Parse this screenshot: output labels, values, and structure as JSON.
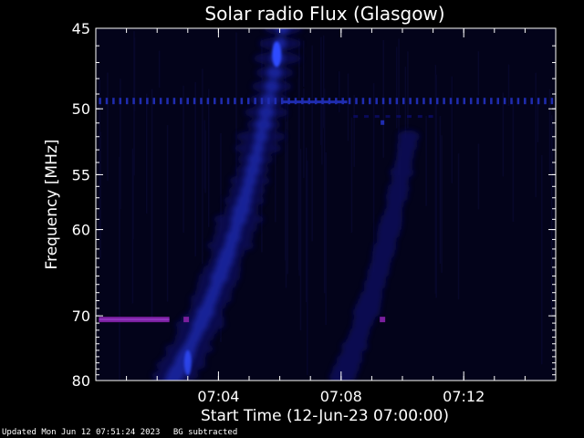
{
  "chart_data": {
    "type": "heatmap",
    "title": "Solar radio Flux (Glasgow)",
    "xlabel": "Start Time (12-Jun-23 07:00:00)",
    "ylabel": "Frequency [MHz]",
    "x_unit": "minutes after 07:00",
    "xlim": [
      0,
      15
    ],
    "ylim": [
      80,
      45
    ],
    "y_scale": "reciprocal",
    "x_ticks": [
      {
        "value": 4,
        "label": "07:04"
      },
      {
        "value": 8,
        "label": "07:08"
      },
      {
        "value": 12,
        "label": "07:12"
      }
    ],
    "y_ticks": [
      {
        "value": 45,
        "label": "45"
      },
      {
        "value": 50,
        "label": "50"
      },
      {
        "value": 55,
        "label": "55"
      },
      {
        "value": 60,
        "label": "60"
      },
      {
        "value": 70,
        "label": "70"
      },
      {
        "value": 80,
        "label": "80"
      }
    ],
    "colors": {
      "background": "#000000",
      "panel": "#03031a",
      "emission_low": "#0a0a5a",
      "emission_mid": "#1f2cb0",
      "emission_high": "#2e4cff",
      "interference": "#7a1f9e",
      "axes": "#ffffff"
    },
    "features": [
      {
        "name": "type III burst (drifting)",
        "x_start": 2.5,
        "x_end": 6.1,
        "f_start": 80,
        "f_end": 45
      },
      {
        "name": "secondary drifting lane",
        "x_start": 8.0,
        "x_end": 10.2,
        "f_start": 80,
        "f_end": 52
      },
      {
        "name": "interference line 49.5 MHz",
        "x_start": 0.1,
        "x_end": 15,
        "f": 49.5
      },
      {
        "name": "interference segment 70.5 MHz",
        "x_start": 0.1,
        "x_end": 2.4,
        "f": 70.5
      },
      {
        "name": "interference dot 70.5 MHz",
        "x": 2.95,
        "f": 70.5
      },
      {
        "name": "interference dot 70.5 MHz",
        "x": 9.35,
        "f": 70.5
      }
    ]
  },
  "footer": {
    "updated": "Updated Mon Jun 12 07:51:24 2023",
    "mode": "BG subtracted"
  }
}
